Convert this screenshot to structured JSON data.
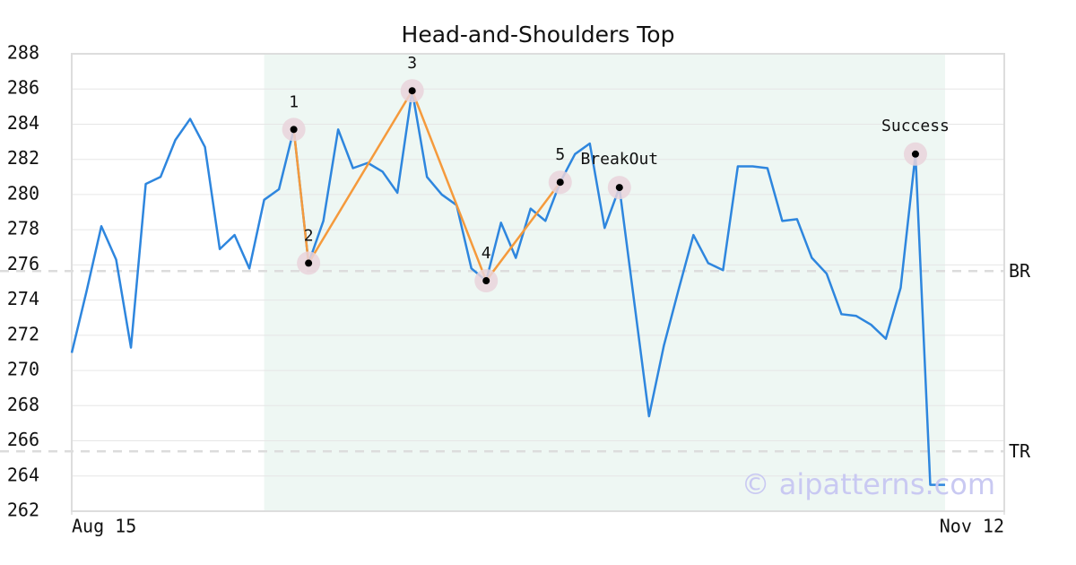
{
  "chart_data": {
    "type": "line",
    "title": "Head-and-Shoulders Top",
    "x": [
      0,
      1,
      2,
      3,
      4,
      5,
      6,
      7,
      8,
      9,
      10,
      11,
      12,
      13,
      14,
      15,
      16,
      17,
      18,
      19,
      20,
      21,
      22,
      23,
      24,
      25,
      26,
      27,
      28,
      29,
      30,
      31,
      32,
      33,
      34,
      35,
      36,
      37,
      38,
      39,
      40,
      41,
      42,
      43,
      44,
      45,
      46,
      47,
      48,
      49,
      50,
      51,
      52,
      53,
      54,
      55,
      56,
      57,
      58,
      59
    ],
    "series": [
      {
        "color": "#2e86de",
        "values": [
          271.0,
          274.5,
          278.2,
          276.3,
          271.3,
          280.6,
          281.0,
          283.1,
          284.3,
          282.7,
          276.9,
          277.7,
          275.8,
          279.7,
          280.3,
          283.7,
          276.1,
          278.5,
          283.7,
          281.5,
          281.8,
          281.3,
          280.1,
          285.9,
          281.0,
          280.0,
          279.4,
          275.8,
          275.1,
          278.4,
          276.4,
          279.2,
          278.5,
          280.7,
          282.3,
          282.9,
          278.1,
          280.4,
          273.9,
          267.4,
          271.4,
          274.6,
          277.7,
          276.1,
          275.7,
          281.6,
          281.6,
          281.5,
          278.5,
          278.6,
          276.4,
          275.5,
          273.2,
          273.1,
          272.6,
          271.8,
          274.7,
          282.3,
          263.5,
          263.5
        ]
      }
    ],
    "xlim": [
      0,
      63
    ],
    "xticks": [
      {
        "value": 0,
        "label": "Aug 15"
      },
      {
        "value": 63,
        "label": "Nov 12"
      }
    ],
    "ylim": [
      262,
      288
    ],
    "yticks": [
      262,
      264,
      266,
      268,
      270,
      272,
      274,
      276,
      278,
      280,
      282,
      284,
      286,
      288
    ],
    "grid": true,
    "highlight": [
      13,
      59
    ],
    "highlight_color": "#eef7f3",
    "pattern_color": "#f59a3c",
    "pattern_points": [
      {
        "label": "1",
        "x": 15
      },
      {
        "label": "2",
        "x": 16
      },
      {
        "label": "3",
        "x": 23
      },
      {
        "label": "4",
        "x": 28
      },
      {
        "label": "5",
        "x": 33
      }
    ],
    "events": [
      {
        "label": "BreakOut",
        "x": 37
      },
      {
        "label": "Success",
        "x": 57
      }
    ],
    "reference_lines": [
      {
        "label": "BR",
        "value": 275.65
      },
      {
        "label": "TR",
        "value": 265.4
      }
    ],
    "watermark": "© aipatterns.com"
  }
}
